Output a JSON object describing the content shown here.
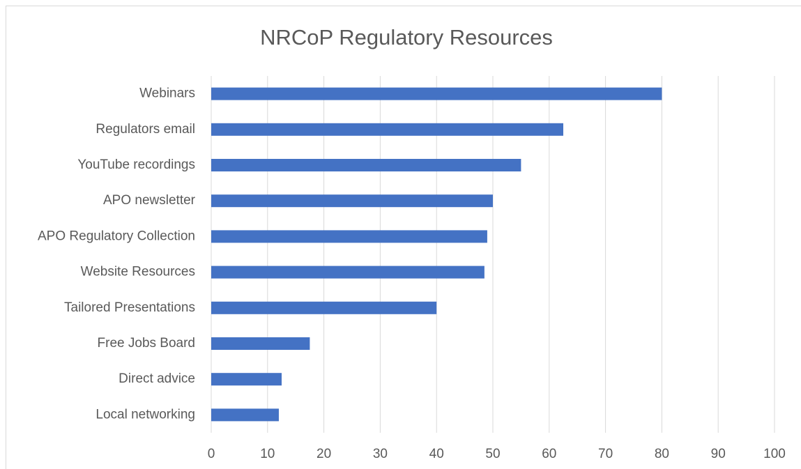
{
  "chart_data": {
    "type": "bar",
    "orientation": "horizontal",
    "title": "NRCoP Regulatory Resources",
    "categories": [
      "Webinars",
      "Regulators email",
      "YouTube recordings",
      "APO newsletter",
      "APO Regulatory Collection",
      "Website Resources",
      "Tailored Presentations",
      "Free Jobs Board",
      "Direct advice",
      "Local networking"
    ],
    "values": [
      80,
      62.5,
      55,
      50,
      49,
      48.5,
      40,
      17.5,
      12.5,
      12
    ],
    "color": "#4472c4",
    "xlim": [
      0,
      100
    ],
    "xticks": [
      0,
      10,
      20,
      30,
      40,
      50,
      60,
      70,
      80,
      90,
      100
    ],
    "grid": true
  }
}
